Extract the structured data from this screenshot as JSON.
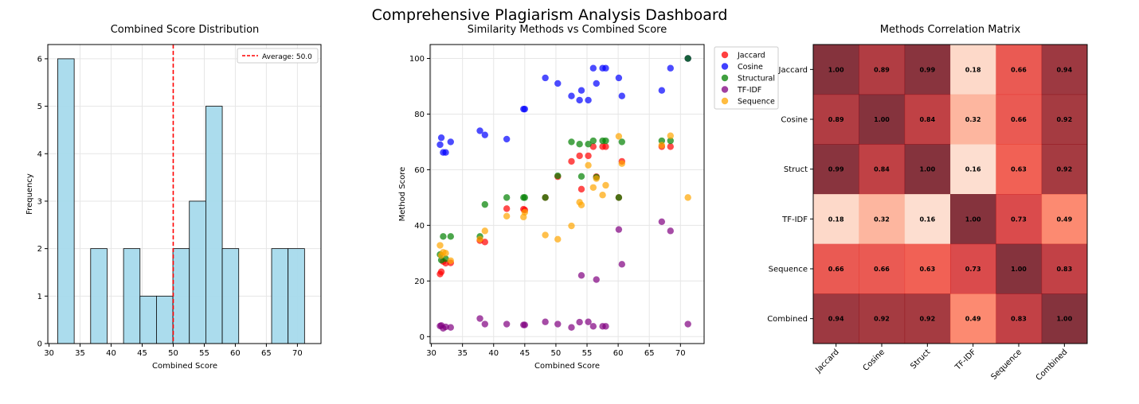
{
  "suptitle": "Comprehensive Plagiarism Analysis Dashboard",
  "chart_data": [
    {
      "type": "bar",
      "title": "Combined Score Distribution",
      "xlabel": "Combined Score",
      "ylabel": "Frequency",
      "xlim": [
        29.8,
        73.8
      ],
      "ylim": [
        0,
        6.3
      ],
      "xticks": [
        30,
        35,
        40,
        45,
        50,
        55,
        60,
        65,
        70
      ],
      "yticks": [
        0,
        1,
        2,
        3,
        4,
        5,
        6
      ],
      "bins": [
        {
          "x0": 31.4,
          "x1": 34.05,
          "count": 6
        },
        {
          "x0": 34.05,
          "x1": 36.7,
          "count": 0
        },
        {
          "x0": 36.7,
          "x1": 39.35,
          "count": 2
        },
        {
          "x0": 39.35,
          "x1": 42.0,
          "count": 0
        },
        {
          "x0": 42.0,
          "x1": 44.65,
          "count": 2
        },
        {
          "x0": 44.65,
          "x1": 47.3,
          "count": 1
        },
        {
          "x0": 47.3,
          "x1": 49.95,
          "count": 1
        },
        {
          "x0": 49.95,
          "x1": 52.6,
          "count": 2
        },
        {
          "x0": 52.6,
          "x1": 55.25,
          "count": 3
        },
        {
          "x0": 55.25,
          "x1": 57.9,
          "count": 5
        },
        {
          "x0": 57.9,
          "x1": 60.55,
          "count": 2
        },
        {
          "x0": 60.55,
          "x1": 63.2,
          "count": 0
        },
        {
          "x0": 63.2,
          "x1": 65.85,
          "count": 0
        },
        {
          "x0": 65.85,
          "x1": 68.5,
          "count": 2
        },
        {
          "x0": 68.5,
          "x1": 71.15,
          "count": 2
        }
      ],
      "bar_color": "#a6daec",
      "average_line": {
        "value": 50.0,
        "label": "Average: 50.0",
        "color": "#ff0000"
      },
      "legend_position": "top-right",
      "grid": true
    },
    {
      "type": "scatter",
      "title": "Similarity Methods vs Combined Score",
      "xlabel": "Combined Score",
      "ylabel": "Method Score",
      "xlim": [
        29.8,
        73.8
      ],
      "ylim": [
        -2.5,
        105
      ],
      "xticks": [
        30,
        35,
        40,
        45,
        50,
        55,
        60,
        65,
        70
      ],
      "yticks": [
        0,
        20,
        40,
        60,
        80,
        100
      ],
      "x": [
        31.4,
        31.6,
        31.9,
        32.3,
        33.1,
        37.8,
        38.6,
        42.1,
        44.8,
        45.0,
        48.3,
        50.3,
        52.5,
        53.8,
        54.1,
        55.2,
        56.0,
        56.5,
        57.5,
        58.0,
        60.1,
        60.6,
        67.0,
        68.4,
        71.2
      ],
      "series": [
        {
          "name": "Jaccard",
          "color": "#ff0000",
          "values": [
            22.5,
            23.3,
            27.0,
            26.4,
            26.5,
            34.5,
            34.0,
            46.0,
            45.8,
            45.5,
            50.0,
            57.5,
            63.0,
            65.0,
            53.0,
            65.0,
            68.3,
            57.5,
            68.3,
            68.3,
            50.0,
            63.0,
            68.3,
            68.3,
            100.0
          ]
        },
        {
          "name": "Cosine",
          "color": "#0000ff",
          "values": [
            69.0,
            71.5,
            66.2,
            66.2,
            70.0,
            74.0,
            72.5,
            71.0,
            81.8,
            81.8,
            93.0,
            91.0,
            86.5,
            85.0,
            88.5,
            85.0,
            96.5,
            91.0,
            96.5,
            96.5,
            93.0,
            86.5,
            88.5,
            96.5,
            100.0
          ]
        },
        {
          "name": "Structural",
          "color": "#008000",
          "values": [
            29.5,
            27.5,
            36.0,
            28.0,
            36.0,
            36.0,
            47.5,
            50.0,
            50.0,
            50.0,
            50.0,
            57.8,
            70.0,
            69.2,
            57.6,
            69.2,
            70.4,
            57.3,
            70.4,
            70.4,
            50.0,
            70.0,
            70.4,
            70.4,
            100.0
          ]
        },
        {
          "name": "TF-IDF",
          "color": "#800080",
          "values": [
            3.8,
            4.0,
            3.0,
            3.5,
            3.3,
            6.5,
            4.5,
            4.5,
            4.2,
            4.2,
            5.3,
            4.5,
            3.3,
            5.2,
            22.0,
            5.3,
            3.7,
            20.5,
            3.7,
            3.7,
            38.5,
            26.0,
            41.3,
            38.0,
            4.5
          ]
        },
        {
          "name": "Sequence",
          "color": "#ffa500",
          "values": [
            32.8,
            29.2,
            30.3,
            30.0,
            27.3,
            35.0,
            38.0,
            43.3,
            43.0,
            44.7,
            36.5,
            35.0,
            39.8,
            48.3,
            47.3,
            61.6,
            53.6,
            56.8,
            50.9,
            54.4,
            72.0,
            62.2,
            68.8,
            72.2,
            50.0
          ]
        }
      ],
      "legend_position": "outside-right",
      "grid": true
    },
    {
      "type": "heatmap",
      "title": "Methods Correlation Matrix",
      "labels": [
        "Jaccard",
        "Cosine",
        "Struct",
        "TF-IDF",
        "Sequence",
        "Combined"
      ],
      "y_labels": [
        "Jaccard",
        "Cosine",
        "Struct",
        "TF-IDF",
        "Sequence",
        "Combined"
      ],
      "values": [
        [
          1.0,
          0.89,
          0.99,
          0.18,
          0.66,
          0.94
        ],
        [
          0.89,
          1.0,
          0.84,
          0.32,
          0.66,
          0.92
        ],
        [
          0.99,
          0.84,
          1.0,
          0.16,
          0.63,
          0.92
        ],
        [
          0.18,
          0.32,
          0.16,
          1.0,
          0.73,
          0.49
        ],
        [
          0.66,
          0.66,
          0.63,
          0.73,
          1.0,
          0.83
        ],
        [
          0.94,
          0.92,
          0.92,
          0.49,
          0.83,
          1.0
        ]
      ],
      "cell_labels": [
        [
          "1.00",
          "0.89",
          "0.99",
          "0.18",
          "0.66",
          "0.94"
        ],
        [
          "0.89",
          "1.00",
          "0.84",
          "0.32",
          "0.66",
          "0.92"
        ],
        [
          "0.99",
          "0.84",
          "1.00",
          "0.16",
          "0.63",
          "0.92"
        ],
        [
          "0.18",
          "0.32",
          "0.16",
          "1.00",
          "0.73",
          "0.49"
        ],
        [
          "0.66",
          "0.66",
          "0.63",
          "0.73",
          "1.00",
          "0.83"
        ],
        [
          "0.94",
          "0.92",
          "0.92",
          "0.49",
          "0.83",
          "1.00"
        ]
      ],
      "colormap": "Reds",
      "vmin": 0,
      "vmax": 1
    }
  ]
}
